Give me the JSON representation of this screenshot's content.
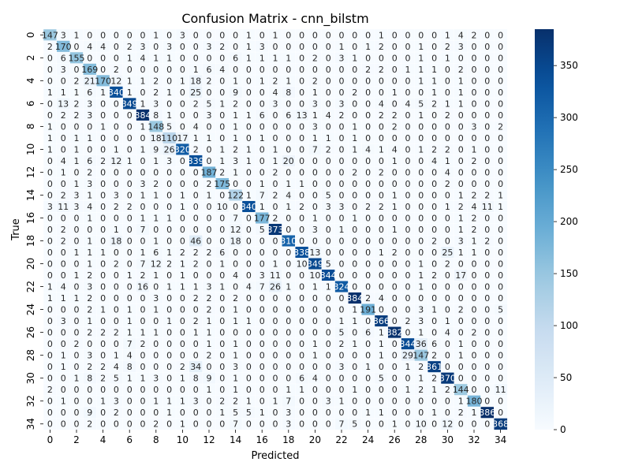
{
  "chart_data": {
    "type": "heatmap",
    "title": "Confusion Matrix - cnn_bilstm",
    "xlabel": "Predicted",
    "ylabel": "True",
    "colormap": "Blues",
    "colorbar": {
      "min": 0,
      "max": 385,
      "ticks": [
        0,
        50,
        100,
        150,
        200,
        250,
        300,
        350
      ]
    },
    "ticks": [
      0,
      2,
      4,
      6,
      8,
      10,
      12,
      14,
      16,
      18,
      20,
      22,
      24,
      26,
      28,
      30,
      32,
      34
    ],
    "n": 35,
    "diagonal": [
      147,
      170,
      155,
      169,
      170,
      340,
      349,
      384,
      148,
      110,
      320,
      339,
      187,
      175,
      122,
      340,
      177,
      373,
      310,
      338,
      349,
      344,
      324,
      384,
      191,
      366,
      382,
      344,
      147,
      361,
      370,
      144,
      180,
      386,
      368
    ],
    "rows": [
      [
        147,
        3,
        1,
        0,
        0,
        0,
        0,
        0,
        1,
        0,
        3,
        0,
        0,
        0,
        0,
        1,
        0,
        1,
        0,
        0,
        0,
        0,
        0,
        0,
        0,
        1,
        0,
        0,
        0,
        0,
        1,
        4,
        2,
        0,
        0
      ],
      [
        2,
        170,
        0,
        4,
        4,
        0,
        2,
        3,
        0,
        3,
        0,
        0,
        3,
        2,
        0,
        1,
        3,
        0,
        0,
        0,
        0,
        0,
        1,
        0,
        1,
        2,
        0,
        0,
        1,
        0,
        2,
        3,
        0,
        0,
        0
      ],
      [
        0,
        6,
        155,
        0,
        0,
        0,
        1,
        4,
        1,
        1,
        0,
        0,
        0,
        0,
        6,
        1,
        1,
        1,
        1,
        0,
        2,
        0,
        3,
        1,
        0,
        0,
        0,
        0,
        1,
        0,
        1,
        0,
        0,
        0,
        0
      ],
      [
        0,
        3,
        0,
        169,
        0,
        2,
        0,
        0,
        0,
        0,
        0,
        1,
        6,
        4,
        0,
        0,
        0,
        0,
        0,
        0,
        0,
        0,
        0,
        0,
        2,
        2,
        0,
        1,
        1,
        1,
        0,
        2,
        0,
        0,
        0
      ],
      [
        0,
        0,
        2,
        21,
        170,
        12,
        1,
        1,
        2,
        0,
        1,
        18,
        2,
        0,
        1,
        0,
        1,
        2,
        1,
        0,
        2,
        0,
        0,
        0,
        0,
        0,
        0,
        0,
        1,
        1,
        0,
        1,
        0,
        0,
        0
      ],
      [
        1,
        1,
        1,
        6,
        1,
        340,
        1,
        0,
        2,
        1,
        0,
        25,
        0,
        0,
        9,
        0,
        0,
        4,
        8,
        0,
        1,
        0,
        0,
        2,
        0,
        0,
        1,
        0,
        0,
        1,
        0,
        1,
        0,
        0,
        0
      ],
      [
        0,
        13,
        2,
        3,
        0,
        0,
        349,
        1,
        3,
        0,
        0,
        2,
        5,
        1,
        2,
        0,
        0,
        3,
        0,
        0,
        3,
        0,
        3,
        0,
        0,
        4,
        0,
        4,
        5,
        2,
        1,
        1,
        0,
        0,
        0
      ],
      [
        0,
        2,
        2,
        3,
        0,
        0,
        0,
        384,
        8,
        1,
        0,
        0,
        3,
        0,
        1,
        1,
        6,
        0,
        6,
        13,
        1,
        4,
        2,
        0,
        0,
        2,
        2,
        0,
        1,
        0,
        2,
        0,
        0,
        0,
        0
      ],
      [
        1,
        0,
        0,
        0,
        1,
        0,
        0,
        1,
        148,
        5,
        0,
        4,
        0,
        0,
        1,
        0,
        0,
        0,
        0,
        0,
        3,
        0,
        0,
        1,
        0,
        0,
        2,
        0,
        0,
        0,
        0,
        0,
        3,
        0,
        2
      ],
      [
        1,
        0,
        1,
        1,
        0,
        0,
        0,
        0,
        18,
        110,
        17,
        1,
        1,
        0,
        1,
        0,
        1,
        0,
        0,
        0,
        1,
        1,
        0,
        1,
        0,
        0,
        0,
        0,
        0,
        0,
        0,
        0,
        0,
        0,
        0
      ],
      [
        1,
        0,
        1,
        0,
        0,
        1,
        0,
        1,
        9,
        26,
        320,
        2,
        0,
        1,
        2,
        1,
        0,
        1,
        0,
        0,
        7,
        2,
        0,
        1,
        4,
        1,
        4,
        0,
        1,
        2,
        2,
        0,
        1,
        0,
        0
      ],
      [
        0,
        4,
        1,
        6,
        2,
        12,
        1,
        0,
        1,
        3,
        0,
        339,
        0,
        1,
        3,
        1,
        0,
        1,
        20,
        0,
        0,
        0,
        0,
        0,
        0,
        0,
        1,
        0,
        0,
        4,
        1,
        0,
        2,
        0,
        0
      ],
      [
        0,
        1,
        0,
        2,
        0,
        0,
        0,
        0,
        0,
        0,
        0,
        0,
        187,
        2,
        1,
        0,
        0,
        2,
        0,
        0,
        0,
        0,
        0,
        2,
        0,
        2,
        0,
        0,
        0,
        0,
        4,
        0,
        0,
        0,
        0
      ],
      [
        0,
        0,
        1,
        3,
        0,
        0,
        0,
        3,
        2,
        0,
        0,
        0,
        2,
        175,
        0,
        0,
        1,
        0,
        1,
        1,
        0,
        0,
        0,
        0,
        0,
        0,
        0,
        0,
        0,
        0,
        2,
        0,
        0,
        0,
        0
      ],
      [
        0,
        2,
        3,
        1,
        0,
        3,
        0,
        1,
        1,
        0,
        1,
        0,
        1,
        0,
        122,
        1,
        7,
        2,
        4,
        0,
        0,
        5,
        0,
        0,
        0,
        0,
        1,
        0,
        0,
        0,
        0,
        1,
        2,
        2,
        1
      ],
      [
        3,
        11,
        3,
        4,
        0,
        2,
        2,
        0,
        0,
        0,
        1,
        0,
        0,
        10,
        0,
        340,
        1,
        0,
        1,
        2,
        0,
        3,
        3,
        0,
        2,
        2,
        1,
        0,
        0,
        0,
        1,
        2,
        4,
        11,
        1
      ],
      [
        0,
        0,
        0,
        1,
        0,
        0,
        0,
        1,
        1,
        1,
        0,
        0,
        0,
        0,
        7,
        0,
        177,
        2,
        0,
        0,
        1,
        0,
        0,
        1,
        0,
        0,
        0,
        0,
        0,
        0,
        0,
        1,
        2,
        0,
        0
      ],
      [
        0,
        2,
        0,
        0,
        0,
        1,
        0,
        7,
        0,
        0,
        0,
        0,
        0,
        0,
        12,
        0,
        5,
        373,
        0,
        0,
        3,
        0,
        1,
        0,
        0,
        0,
        1,
        0,
        0,
        0,
        0,
        1,
        2,
        0,
        0
      ],
      [
        0,
        2,
        0,
        1,
        0,
        18,
        0,
        0,
        1,
        0,
        0,
        46,
        0,
        0,
        18,
        0,
        0,
        0,
        310,
        0,
        0,
        0,
        0,
        0,
        0,
        0,
        0,
        0,
        0,
        2,
        0,
        3,
        1,
        2,
        0
      ],
      [
        0,
        0,
        1,
        1,
        1,
        0,
        0,
        1,
        6,
        1,
        2,
        2,
        2,
        6,
        0,
        0,
        0,
        0,
        0,
        338,
        13,
        0,
        0,
        0,
        0,
        1,
        2,
        0,
        0,
        0,
        25,
        1,
        1,
        0,
        0
      ],
      [
        0,
        0,
        0,
        1,
        0,
        2,
        0,
        7,
        12,
        2,
        1,
        2,
        0,
        1,
        0,
        0,
        0,
        1,
        0,
        10,
        349,
        5,
        0,
        0,
        0,
        0,
        0,
        0,
        1,
        0,
        2,
        0,
        0,
        0,
        0
      ],
      [
        0,
        0,
        1,
        2,
        0,
        0,
        1,
        2,
        1,
        0,
        1,
        0,
        0,
        0,
        4,
        0,
        3,
        11,
        0,
        0,
        10,
        344,
        0,
        0,
        0,
        0,
        0,
        0,
        1,
        2,
        0,
        17,
        0,
        0,
        0
      ],
      [
        1,
        4,
        0,
        3,
        0,
        0,
        0,
        16,
        0,
        1,
        1,
        1,
        3,
        1,
        0,
        4,
        7,
        26,
        1,
        0,
        1,
        1,
        324,
        0,
        0,
        0,
        0,
        0,
        1,
        0,
        0,
        0,
        0,
        0,
        0
      ],
      [
        1,
        1,
        1,
        2,
        0,
        0,
        0,
        0,
        3,
        0,
        0,
        2,
        2,
        0,
        2,
        0,
        0,
        0,
        0,
        0,
        0,
        0,
        0,
        384,
        2,
        4,
        0,
        0,
        0,
        0,
        0,
        0,
        0,
        0,
        0
      ],
      [
        0,
        0,
        0,
        2,
        1,
        0,
        1,
        0,
        1,
        0,
        0,
        0,
        2,
        0,
        1,
        0,
        0,
        0,
        0,
        0,
        0,
        0,
        0,
        1,
        191,
        0,
        0,
        0,
        3,
        1,
        0,
        2,
        0,
        0,
        5
      ],
      [
        0,
        3,
        0,
        1,
        0,
        0,
        1,
        0,
        0,
        1,
        0,
        2,
        1,
        0,
        1,
        1,
        0,
        0,
        0,
        0,
        0,
        0,
        1,
        1,
        0,
        366,
        0,
        2,
        3,
        0,
        1,
        0,
        0,
        0,
        0
      ],
      [
        0,
        0,
        0,
        2,
        2,
        2,
        1,
        1,
        1,
        0,
        0,
        1,
        1,
        0,
        0,
        0,
        0,
        0,
        0,
        0,
        0,
        0,
        5,
        0,
        6,
        1,
        382,
        0,
        1,
        0,
        4,
        0,
        2,
        0,
        0
      ],
      [
        0,
        0,
        2,
        0,
        0,
        0,
        7,
        2,
        0,
        0,
        0,
        0,
        1,
        0,
        1,
        0,
        0,
        0,
        0,
        0,
        1,
        0,
        2,
        1,
        0,
        1,
        0,
        344,
        36,
        6,
        0,
        1,
        0,
        0,
        0
      ],
      [
        0,
        1,
        0,
        3,
        0,
        1,
        4,
        0,
        0,
        0,
        0,
        0,
        2,
        0,
        1,
        0,
        0,
        0,
        0,
        0,
        1,
        0,
        0,
        0,
        0,
        1,
        0,
        29,
        147,
        2,
        0,
        1,
        0,
        0,
        0
      ],
      [
        0,
        1,
        0,
        2,
        2,
        4,
        8,
        0,
        0,
        0,
        2,
        34,
        0,
        0,
        3,
        0,
        0,
        0,
        0,
        0,
        0,
        0,
        3,
        0,
        1,
        0,
        0,
        1,
        2,
        361,
        0,
        0,
        0,
        0,
        0
      ],
      [
        0,
        0,
        1,
        8,
        2,
        5,
        1,
        1,
        3,
        0,
        1,
        8,
        9,
        0,
        1,
        0,
        0,
        0,
        0,
        6,
        4,
        0,
        0,
        0,
        0,
        5,
        0,
        0,
        1,
        2,
        370,
        0,
        0,
        0,
        0
      ],
      [
        2,
        0,
        0,
        0,
        0,
        0,
        0,
        0,
        0,
        0,
        0,
        0,
        1,
        0,
        1,
        0,
        0,
        0,
        1,
        1,
        0,
        0,
        0,
        1,
        0,
        0,
        0,
        1,
        2,
        1,
        2,
        144,
        0,
        0,
        11
      ],
      [
        0,
        1,
        0,
        0,
        1,
        3,
        0,
        0,
        1,
        1,
        1,
        3,
        0,
        2,
        2,
        1,
        0,
        1,
        7,
        0,
        0,
        3,
        1,
        0,
        0,
        0,
        0,
        0,
        0,
        0,
        0,
        1,
        180,
        0,
        0
      ],
      [
        0,
        0,
        0,
        9,
        0,
        2,
        0,
        0,
        0,
        1,
        0,
        0,
        0,
        1,
        5,
        5,
        1,
        0,
        3,
        0,
        0,
        0,
        0,
        0,
        1,
        1,
        0,
        0,
        0,
        1,
        0,
        2,
        1,
        386,
        0
      ],
      [
        0,
        0,
        0,
        2,
        0,
        0,
        0,
        0,
        2,
        0,
        1,
        0,
        0,
        0,
        7,
        0,
        0,
        0,
        3,
        0,
        0,
        0,
        7,
        5,
        0,
        0,
        1,
        0,
        10,
        0,
        12,
        0,
        0,
        0,
        368
      ]
    ]
  }
}
